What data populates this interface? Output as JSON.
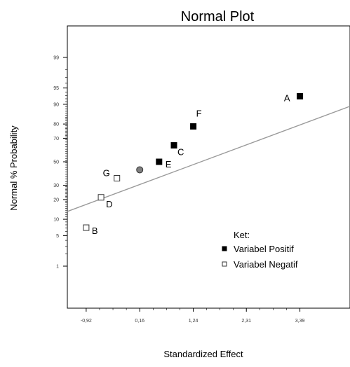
{
  "chart_data": {
    "type": "scatter",
    "title": "Normal Plot",
    "xlabel": "Standardized Effect",
    "ylabel": "Normal % Probability",
    "xlim": [
      -1.3,
      4.4
    ],
    "x_ticks": [
      {
        "value": -0.92,
        "label": "-0,92"
      },
      {
        "value": 0.16,
        "label": "0,16"
      },
      {
        "value": 1.24,
        "label": "1,24"
      },
      {
        "value": 2.31,
        "label": "2,31"
      },
      {
        "value": 3.39,
        "label": "3,39"
      }
    ],
    "y_scale": "normal-probability",
    "y_ticks": [
      1,
      5,
      10,
      20,
      30,
      50,
      70,
      80,
      90,
      95,
      99
    ],
    "reference_line": {
      "x": [
        -1.3,
        4.4
      ],
      "y": [
        13.4,
        89.2
      ],
      "color": "#9a9a9a"
    },
    "series": [
      {
        "name": "Variabel Positif",
        "marker": "filled-square",
        "color": "#000000",
        "points": [
          {
            "label": "A",
            "x": 3.39,
            "y": 92.8
          },
          {
            "label": "F",
            "x": 1.24,
            "y": 78.5
          },
          {
            "label": "C",
            "x": 0.85,
            "y": 64.3
          },
          {
            "label": "E",
            "x": 0.55,
            "y": 50.0
          }
        ]
      },
      {
        "name": "Variabel Negatif",
        "marker": "open-square",
        "color": "#000000",
        "points": [
          {
            "label": "G",
            "x": -0.3,
            "y": 35.7
          },
          {
            "label": "D",
            "x": -0.62,
            "y": 21.4
          },
          {
            "label": "B",
            "x": -0.92,
            "y": 7.1
          }
        ]
      },
      {
        "marker": "gray-circle",
        "color": "#7f7f7f",
        "points": [
          {
            "x": 0.16,
            "y": 42.9
          }
        ]
      }
    ],
    "legend": {
      "title": "Ket:",
      "position": "bottom-right"
    }
  }
}
